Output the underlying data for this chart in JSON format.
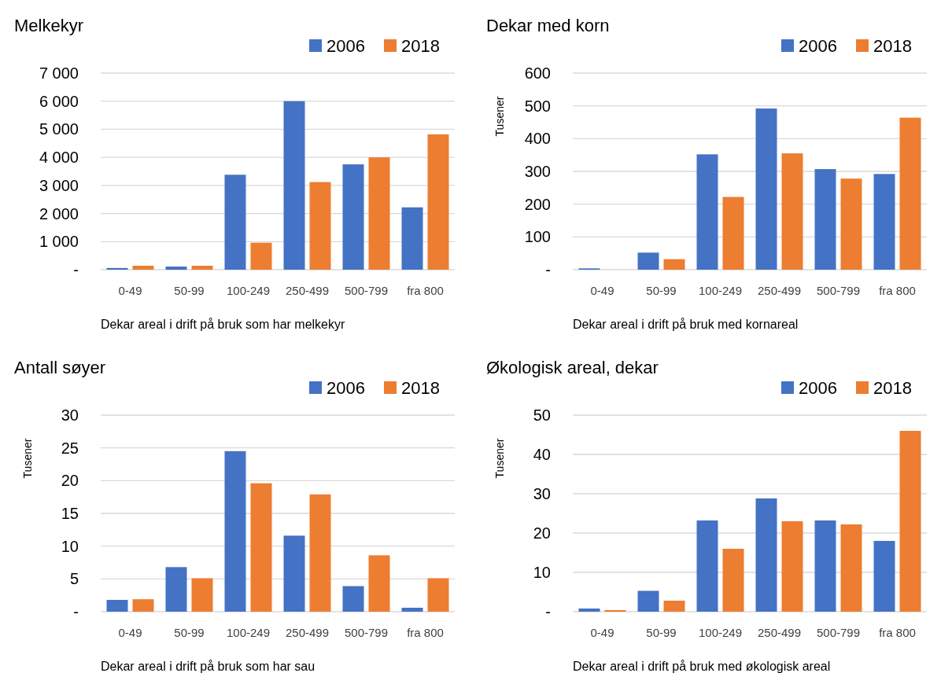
{
  "chart_data": [
    {
      "type": "bar",
      "title": "Melkekyr",
      "xlabel": "Dekar areal i drift på bruk som har melkekyr",
      "categories": [
        "0-49",
        "50-99",
        "100-249",
        "250-499",
        "500-799",
        "fra 800"
      ],
      "series": [
        {
          "name": "2006",
          "color": "#4472c4",
          "values": [
            60,
            110,
            3380,
            6000,
            3750,
            2220
          ]
        },
        {
          "name": "2018",
          "color": "#ed7d31",
          "values": [
            140,
            140,
            960,
            3120,
            4000,
            4820
          ]
        }
      ],
      "ylim": [
        0,
        7000
      ],
      "yticks": [
        {
          "value": 0,
          "label": "-"
        },
        {
          "value": 1000,
          "label": "1 000"
        },
        {
          "value": 2000,
          "label": "2 000"
        },
        {
          "value": 3000,
          "label": "3 000"
        },
        {
          "value": 4000,
          "label": "4 000"
        },
        {
          "value": 5000,
          "label": "5 000"
        },
        {
          "value": 6000,
          "label": "6 000"
        },
        {
          "value": 7000,
          "label": "7 000"
        }
      ],
      "grid": "y",
      "legend": "top right"
    },
    {
      "type": "bar",
      "title": "Dekar med korn",
      "ylabel": "Tusener",
      "xlabel": "Dekar areal i drift på bruk med kornareal",
      "categories": [
        "0-49",
        "50-99",
        "100-249",
        "250-499",
        "500-799",
        "fra 800"
      ],
      "series": [
        {
          "name": "2006",
          "color": "#4472c4",
          "values": [
            4,
            52,
            352,
            492,
            307,
            292
          ]
        },
        {
          "name": "2018",
          "color": "#ed7d31",
          "values": [
            0,
            32,
            222,
            355,
            278,
            464
          ]
        }
      ],
      "ylim": [
        0,
        600
      ],
      "yticks": [
        {
          "value": 0,
          "label": "-"
        },
        100,
        200,
        300,
        400,
        500,
        600
      ],
      "grid": "y",
      "legend": "top right"
    },
    {
      "type": "bar",
      "title": "Antall søyer",
      "ylabel": "Tusener",
      "xlabel": "Dekar areal i drift på bruk som har sau",
      "categories": [
        "0-49",
        "50-99",
        "100-249",
        "250-499",
        "500-799",
        "fra 800"
      ],
      "series": [
        {
          "name": "2006",
          "color": "#4472c4",
          "values": [
            1.8,
            6.8,
            24.5,
            11.6,
            3.9,
            0.6
          ]
        },
        {
          "name": "2018",
          "color": "#ed7d31",
          "values": [
            1.9,
            5.1,
            19.6,
            17.9,
            8.6,
            5.1
          ]
        }
      ],
      "ylim": [
        0,
        30
      ],
      "yticks": [
        {
          "value": 0,
          "label": "-"
        },
        5,
        10,
        15,
        20,
        25,
        30
      ],
      "grid": "y",
      "legend": "top right"
    },
    {
      "type": "bar",
      "title": "Økologisk areal, dekar",
      "ylabel": "Tusener",
      "xlabel": "Dekar areal i drift på bruk med økologisk areal",
      "categories": [
        "0-49",
        "50-99",
        "100-249",
        "250-499",
        "500-799",
        "fra 800"
      ],
      "series": [
        {
          "name": "2006",
          "color": "#4472c4",
          "values": [
            0.8,
            5.3,
            23.2,
            28.8,
            23.2,
            18.0
          ]
        },
        {
          "name": "2018",
          "color": "#ed7d31",
          "values": [
            0.4,
            2.8,
            16.0,
            23.0,
            22.2,
            46.0
          ]
        }
      ],
      "ylim": [
        0,
        50
      ],
      "yticks": [
        {
          "value": 0,
          "label": "-"
        },
        10,
        20,
        30,
        40,
        50
      ],
      "grid": "y",
      "legend": "top right"
    }
  ]
}
